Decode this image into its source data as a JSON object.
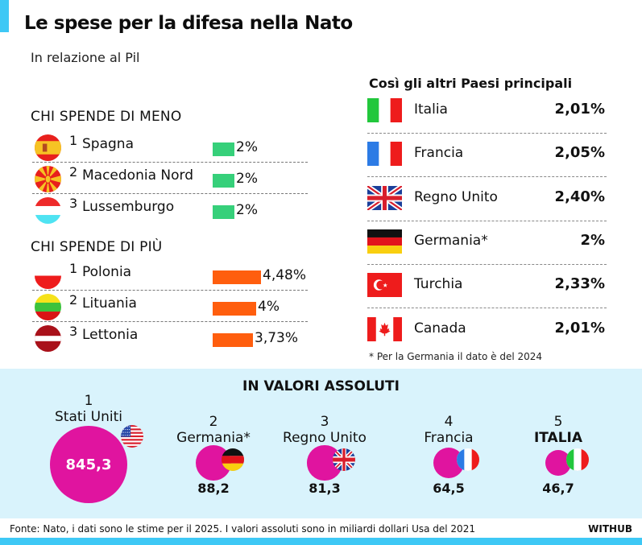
{
  "header": {
    "title": "Le spese per la difesa nella Nato",
    "subtitle": "In relazione al Pil"
  },
  "colors": {
    "accent": "#3ec8f5",
    "low_bar": "#36d07a",
    "high_bar": "#ff5e0e",
    "bubble": "#e0149f",
    "panel": "#d9f3fc"
  },
  "chart_data": [
    {
      "type": "bar",
      "title": "CHI SPENDE DI MENO",
      "unit": "% del Pil",
      "categories": [
        "Spagna",
        "Macedonia Nord",
        "Lussemburgo"
      ],
      "ranks": [
        "1",
        "2",
        "3"
      ],
      "values": [
        2,
        2,
        2
      ],
      "labels": [
        "2%",
        "2%",
        "2%"
      ],
      "flags": [
        "flag-spain-icon",
        "flag-north-macedonia-icon",
        "flag-luxembourg-icon"
      ]
    },
    {
      "type": "bar",
      "title": "CHI SPENDE DI PIÙ",
      "unit": "% del Pil",
      "categories": [
        "Polonia",
        "Lituania",
        "Lettonia"
      ],
      "ranks": [
        "1",
        "2",
        "3"
      ],
      "values": [
        4.48,
        4,
        3.73
      ],
      "labels": [
        "4,48%",
        "4%",
        "3,73%"
      ],
      "flags": [
        "flag-poland-icon",
        "flag-lithuania-icon",
        "flag-latvia-icon"
      ]
    },
    {
      "type": "table",
      "title": "Così gli altri Paesi principali",
      "categories": [
        "Italia",
        "Francia",
        "Regno Unito",
        "Germania*",
        "Turchia",
        "Canada"
      ],
      "values": [
        2.01,
        2.05,
        2.4,
        2,
        2.33,
        2.01
      ],
      "labels": [
        "2,01%",
        "2,05%",
        "2,40%",
        "2%",
        "2,33%",
        "2,01%"
      ],
      "flags": [
        "flag-italy-icon",
        "flag-france-icon",
        "flag-uk-icon",
        "flag-germany-icon",
        "flag-turkey-icon",
        "flag-canada-icon"
      ],
      "footnote": "* Per la Germania il dato è del 2024"
    },
    {
      "type": "bubble",
      "title": "IN VALORI ASSOLUTI",
      "unit": "miliardi dollari Usa del 2021",
      "ranks": [
        "1",
        "2",
        "3",
        "4",
        "5"
      ],
      "categories": [
        "Stati Uniti",
        "Germania*",
        "Regno Unito",
        "Francia",
        "ITALIA"
      ],
      "values": [
        845.3,
        88.2,
        81.3,
        64.5,
        46.7
      ],
      "labels": [
        "845,3",
        "88,2",
        "81,3",
        "64,5",
        "46,7"
      ],
      "flags": [
        "flag-usa-icon",
        "flag-germany-icon",
        "flag-uk-icon",
        "flag-france-icon",
        "flag-italy-icon"
      ]
    }
  ],
  "footer": {
    "source": "Fonte: Nato, i dati sono le stime per il 2025. I valori assoluti sono in miliardi dollari Usa del 2021",
    "brand": "WITHUB"
  }
}
